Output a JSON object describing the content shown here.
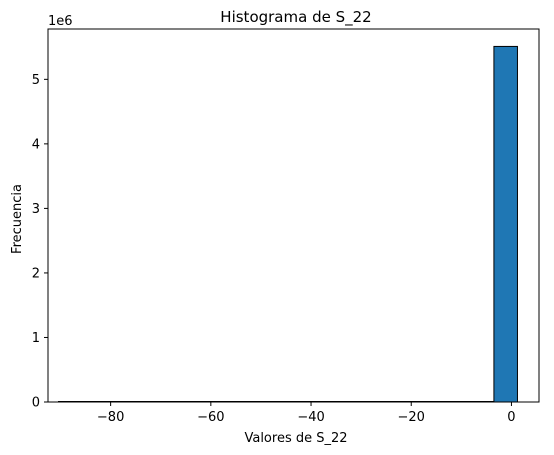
{
  "chart_data": {
    "type": "bar",
    "title": "Histograma de S_22",
    "xlabel": "Valores de S_22",
    "ylabel": "Frecuencia",
    "y_offset_label": "1e6",
    "xlim": [
      -92.5,
      5.5
    ],
    "ylim": [
      0,
      5.78
    ],
    "x_ticks": [
      -80,
      -60,
      -40,
      -20,
      0
    ],
    "x_tick_labels": [
      "−80",
      "−60",
      "−40",
      "−20",
      "0"
    ],
    "y_ticks": [
      0,
      1,
      2,
      3,
      4,
      5
    ],
    "y_tick_labels": [
      "0",
      "1",
      "2",
      "3",
      "4",
      "5"
    ],
    "bins": [
      {
        "x0": -3.5,
        "x1": 1.2,
        "value": 5.51
      }
    ],
    "baseline_range": [
      -90.5,
      1.2
    ],
    "grid": false,
    "legend": "none",
    "bar_color": "#1f77b4",
    "edge_color": "#000000"
  }
}
